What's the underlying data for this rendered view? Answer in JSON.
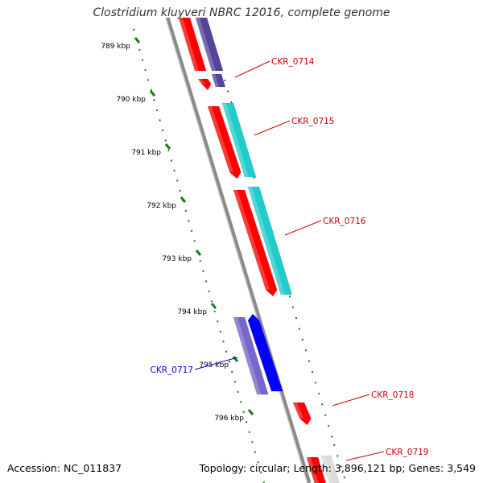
{
  "header": {
    "title": "Clostridium kluyveri NBRC 12016, complete genome"
  },
  "footer": {
    "accession": "Accession: NC_011837",
    "topology": "Topology: circular; Length: 3,896,121 bp; Genes: 3,549"
  },
  "ruler": {
    "ticks": [
      {
        "label": "789 kbp"
      },
      {
        "label": "790 kbp"
      },
      {
        "label": "791 kbp"
      },
      {
        "label": "792 kbp"
      },
      {
        "label": "793 kbp"
      },
      {
        "label": "794 kbp"
      },
      {
        "label": "795 kbp"
      },
      {
        "label": "796 kbp"
      }
    ]
  },
  "genes": [
    {
      "label": "CKR_0714",
      "strand": "forward",
      "color": "#ff0000"
    },
    {
      "label": "CKR_0715",
      "strand": "forward",
      "color": "#ff0000"
    },
    {
      "label": "CKR_0716",
      "strand": "forward",
      "color": "#ff0000"
    },
    {
      "label": "CKR_0717",
      "strand": "reverse",
      "color": "#0000cc"
    },
    {
      "label": "CKR_0718",
      "strand": "forward",
      "color": "#ff0000"
    },
    {
      "label": "CKR_0719",
      "strand": "forward",
      "color": "#ff0000"
    }
  ],
  "colors": {
    "cds_forward": "#ff0000",
    "cds_reverse": "#0000ff",
    "feature_cyan": "#22cccc",
    "feature_purple": "#7766cc",
    "feature_navy": "#554499",
    "backbone": "#888888",
    "tick": "#1a7a1a",
    "label_forward": "#cc0000",
    "label_reverse": "#0000cc"
  }
}
